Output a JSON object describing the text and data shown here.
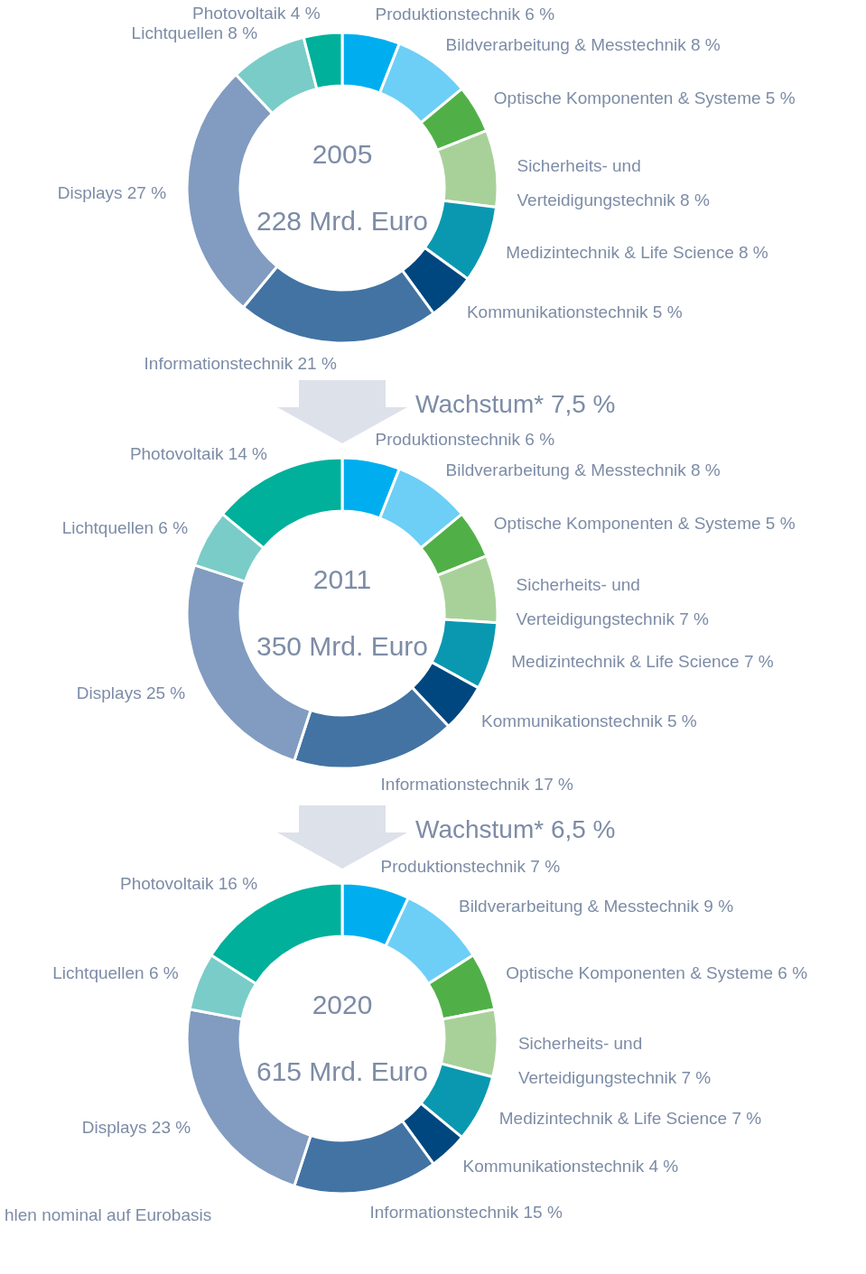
{
  "chart_data": [
    {
      "type": "donut",
      "title": "2005",
      "subtitle": "228 Mrd. Euro",
      "categories": [
        "Produktionstechnik",
        "Bildverarbeitung & Messtechnik",
        "Optische Komponenten & Systeme",
        "Sicherheits- und Verteidigungstechnik",
        "Medizintechnik & Life Science",
        "Kommunikationstechnik",
        "Informationstechnik",
        "Displays",
        "Lichtquellen",
        "Photovoltaik"
      ],
      "values": [
        6,
        8,
        5,
        8,
        8,
        5,
        21,
        27,
        8,
        4
      ],
      "value_labels": [
        "6 %",
        "8 %",
        "5 %",
        "8 %",
        "8 %",
        "5 %",
        "21 %",
        "27 %",
        "8 %",
        "4 %"
      ],
      "colors": [
        "#00aeef",
        "#6dcff6",
        "#50b047",
        "#a8d19a",
        "#0a98b0",
        "#00477f",
        "#4273a3",
        "#819cc0",
        "#7accc8",
        "#00b09b"
      ]
    },
    {
      "type": "donut",
      "title": "2011",
      "subtitle": "350 Mrd. Euro",
      "categories": [
        "Produktionstechnik",
        "Bildverarbeitung & Messtechnik",
        "Optische Komponenten & Systeme",
        "Sicherheits- und Verteidigungstechnik",
        "Medizintechnik & Life Science",
        "Kommunikationstechnik",
        "Informationstechnik",
        "Displays",
        "Lichtquellen",
        "Photovoltaik"
      ],
      "values": [
        6,
        8,
        5,
        7,
        7,
        5,
        17,
        25,
        6,
        14
      ],
      "value_labels": [
        "6 %",
        "8 %",
        "5 %",
        "7 %",
        "7 %",
        "5 %",
        "17 %",
        "25 %",
        "6 %",
        "14 %"
      ],
      "colors": [
        "#00aeef",
        "#6dcff6",
        "#50b047",
        "#a8d19a",
        "#0a98b0",
        "#00477f",
        "#4273a3",
        "#819cc0",
        "#7accc8",
        "#00b09b"
      ],
      "annotations": [
        "Wachstum* 7,5 %"
      ]
    },
    {
      "type": "donut",
      "title": "2020",
      "subtitle": "615 Mrd. Euro",
      "categories": [
        "Produktionstechnik",
        "Bildverarbeitung & Messtechnik",
        "Optische Komponenten & Systeme",
        "Sicherheits- und Verteidigungstechnik",
        "Medizintechnik & Life Science",
        "Kommunikationstechnik",
        "Informationstechnik",
        "Displays",
        "Lichtquellen",
        "Photovoltaik"
      ],
      "values": [
        7,
        9,
        6,
        7,
        7,
        4,
        15,
        23,
        6,
        16
      ],
      "value_labels": [
        "7 %",
        "9 %",
        "6 %",
        "7 %",
        "7 %",
        "4 %",
        "15 %",
        "23 %",
        "6 %",
        "16 %"
      ],
      "colors": [
        "#00aeef",
        "#6dcff6",
        "#50b047",
        "#a8d19a",
        "#0a98b0",
        "#00477f",
        "#4273a3",
        "#819cc0",
        "#7accc8",
        "#00b09b"
      ],
      "annotations": [
        "Wachstum* 6,5 %",
        "hlen nominal auf Eurobasis"
      ]
    }
  ]
}
